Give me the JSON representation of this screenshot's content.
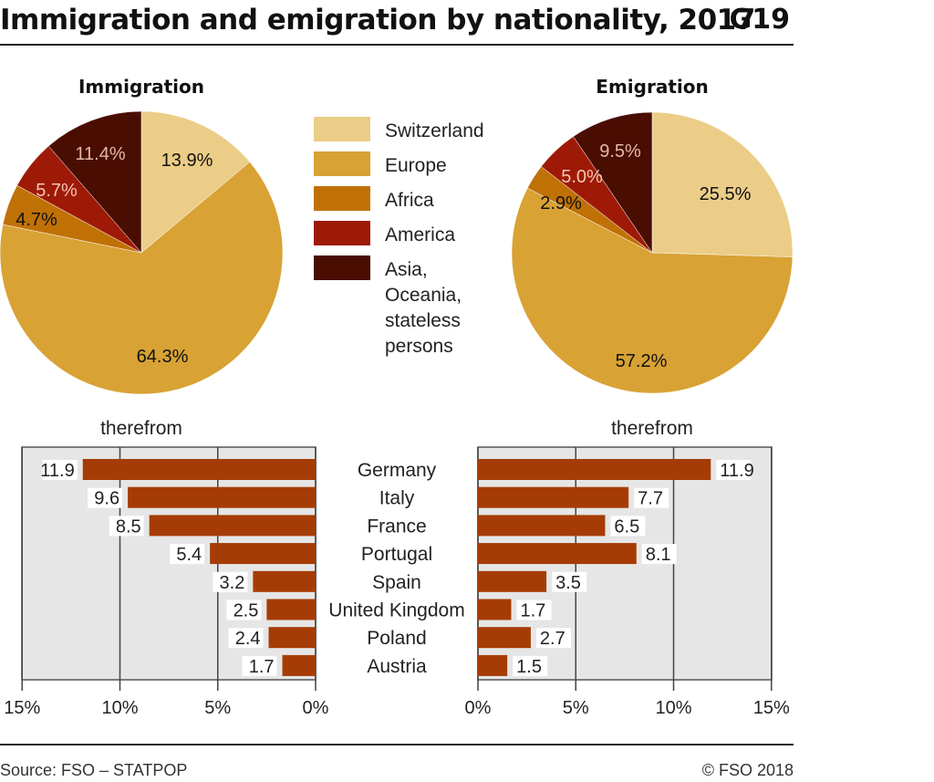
{
  "header": {
    "title": "Immigration and emigration by nationality, 2017",
    "code": "G19"
  },
  "footer": {
    "source": "Source: FSO – STATPOP",
    "copyright": "© FSO 2018"
  },
  "colors": {
    "Switzerland": "#ebcd87",
    "Europe": "#d8a234",
    "Africa": "#c07106",
    "America": "#9e1a06",
    "Asia, Oceania, stateless persons": "#4a0d02",
    "bar": "#a63c05",
    "panel": "#e6e6e6"
  },
  "legend": [
    "Switzerland",
    "Europe",
    "Africa",
    "America",
    "Asia,|Oceania,|stateless|persons"
  ],
  "chart_data": [
    {
      "type": "pie",
      "title": "Immigration",
      "slices": [
        {
          "name": "Switzerland",
          "value": 13.9,
          "label": "13.9%"
        },
        {
          "name": "Europe",
          "value": 64.3,
          "label": "64.3%"
        },
        {
          "name": "Africa",
          "value": 4.7,
          "label": "4.7%"
        },
        {
          "name": "America",
          "value": 5.7,
          "label": "5.7%"
        },
        {
          "name": "Asia, Oceania, stateless persons",
          "value": 11.4,
          "label": "11.4%"
        }
      ]
    },
    {
      "type": "pie",
      "title": "Emigration",
      "slices": [
        {
          "name": "Switzerland",
          "value": 25.5,
          "label": "25.5%"
        },
        {
          "name": "Europe",
          "value": 57.2,
          "label": "57.2%"
        },
        {
          "name": "Africa",
          "value": 2.9,
          "label": "2.9%"
        },
        {
          "name": "America",
          "value": 5.0,
          "label": "5.0%"
        },
        {
          "name": "Asia, Oceania, stateless persons",
          "value": 9.5,
          "label": "9.5%"
        }
      ]
    },
    {
      "type": "bar",
      "orientation": "horizontal",
      "subtitle": "therefrom",
      "categories": [
        "Germany",
        "Italy",
        "France",
        "Portugal",
        "Spain",
        "United Kingdom",
        "Poland",
        "Austria"
      ],
      "series": [
        {
          "name": "Immigration",
          "values": [
            11.9,
            9.6,
            8.5,
            5.4,
            3.2,
            2.5,
            2.4,
            1.7
          ]
        },
        {
          "name": "Emigration",
          "values": [
            11.9,
            7.7,
            6.5,
            8.1,
            3.5,
            1.7,
            2.7,
            1.5
          ]
        }
      ],
      "xlim": [
        0,
        15
      ],
      "ticks": [
        0,
        5,
        10,
        15
      ],
      "left_tick_labels": [
        "15%",
        "10%",
        "5%",
        "0%"
      ],
      "right_tick_labels": [
        "0%",
        "5%",
        "10%",
        "15%"
      ],
      "grid": true
    }
  ]
}
